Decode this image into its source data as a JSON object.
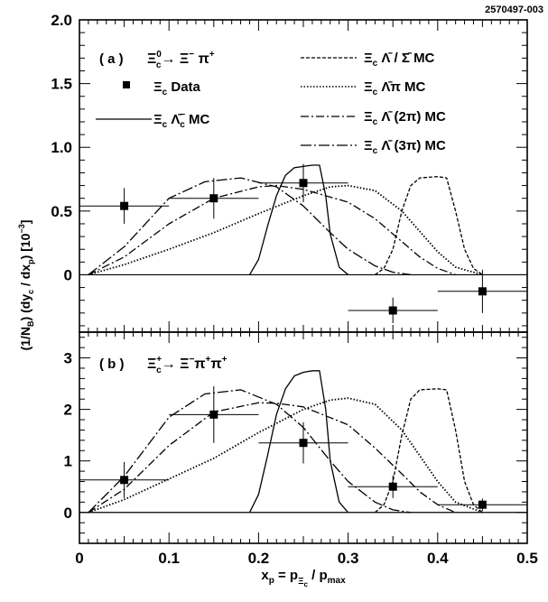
{
  "figure_id": "2570497-003",
  "y_axis_label": "(1/N_B) (dy_c / dx_p) [10^-3]",
  "x_axis_label": "x_p = p_Ξc / p_max",
  "chart_data": [
    {
      "type": "scatter",
      "panel": "a",
      "panel_label": "( a )",
      "decay": "Ξc0 → Ξ− π+",
      "xlim": [
        0,
        0.5
      ],
      "ylim": [
        -0.45,
        2.0
      ],
      "x_ticks": [
        0,
        0.1,
        0.2,
        0.3,
        0.4,
        0.5
      ],
      "y_ticks": [
        0,
        0.5,
        1.0,
        1.5,
        2.0
      ],
      "y_tick_labels": [
        "0",
        "0.5",
        "1.0",
        "1.5",
        "2.0"
      ],
      "data": {
        "name": "Ξc Data",
        "x": [
          0.05,
          0.15,
          0.25,
          0.35,
          0.45
        ],
        "y": [
          0.54,
          0.6,
          0.72,
          -0.28,
          -0.13
        ],
        "x_err": [
          0.05,
          0.05,
          0.05,
          0.05,
          0.05
        ],
        "y_err": [
          0.14,
          0.16,
          0.15,
          0.1,
          0.17
        ]
      },
      "mc_series": [
        {
          "name": "Ξc Λ̄c⁻ MC",
          "style": "solid",
          "x": [
            0.19,
            0.2,
            0.21,
            0.22,
            0.23,
            0.24,
            0.25,
            0.26,
            0.268,
            0.275,
            0.28,
            0.29,
            0.3
          ],
          "y": [
            0,
            0.12,
            0.38,
            0.62,
            0.78,
            0.84,
            0.85,
            0.86,
            0.86,
            0.62,
            0.32,
            0.06,
            0
          ]
        },
        {
          "name": "Ξc Λ̄ / Σ̄ MC",
          "style": "dashed",
          "x": [
            0.33,
            0.34,
            0.35,
            0.36,
            0.37,
            0.38,
            0.4,
            0.41,
            0.42,
            0.43,
            0.44,
            0.45
          ],
          "y": [
            0,
            0.05,
            0.2,
            0.5,
            0.7,
            0.76,
            0.77,
            0.76,
            0.5,
            0.2,
            0.05,
            0
          ]
        },
        {
          "name": "Ξc Λ̄ π MC",
          "style": "dotted",
          "x": [
            0.01,
            0.05,
            0.1,
            0.15,
            0.2,
            0.25,
            0.28,
            0.3,
            0.33,
            0.36,
            0.38,
            0.4,
            0.42,
            0.45
          ],
          "y": [
            0,
            0.08,
            0.2,
            0.33,
            0.48,
            0.62,
            0.69,
            0.7,
            0.66,
            0.5,
            0.34,
            0.18,
            0.06,
            0
          ]
        },
        {
          "name": "Ξc Λ̄ (2π) MC",
          "style": "dashdot",
          "x": [
            0.01,
            0.05,
            0.1,
            0.15,
            0.2,
            0.22,
            0.25,
            0.3,
            0.33,
            0.36,
            0.38,
            0.4,
            0.42
          ],
          "y": [
            0,
            0.14,
            0.4,
            0.6,
            0.69,
            0.7,
            0.67,
            0.57,
            0.44,
            0.26,
            0.14,
            0.05,
            0
          ]
        },
        {
          "name": "Ξc Λ̄ (3π) MC",
          "style": "dashdotdot",
          "x": [
            0.01,
            0.05,
            0.1,
            0.14,
            0.18,
            0.22,
            0.25,
            0.28,
            0.3,
            0.33,
            0.35,
            0.37
          ],
          "y": [
            0,
            0.22,
            0.6,
            0.73,
            0.76,
            0.69,
            0.54,
            0.33,
            0.2,
            0.07,
            0.02,
            0
          ]
        }
      ]
    },
    {
      "type": "scatter",
      "panel": "b",
      "panel_label": "( b )",
      "decay": "Ξc+ → Ξ− π+ π+",
      "xlim": [
        0,
        0.5
      ],
      "ylim": [
        -0.6,
        3.5
      ],
      "x_ticks": [
        0,
        0.1,
        0.2,
        0.3,
        0.4,
        0.5
      ],
      "x_tick_labels": [
        "0",
        "0.1",
        "0.2",
        "0.3",
        "0.4",
        "0.5"
      ],
      "y_ticks": [
        0,
        1,
        2,
        3
      ],
      "y_tick_labels": [
        "0",
        "1",
        "2",
        "3"
      ],
      "data": {
        "name": "Ξc Data",
        "x": [
          0.05,
          0.15,
          0.25,
          0.35,
          0.45
        ],
        "y": [
          0.63,
          1.9,
          1.35,
          0.5,
          0.15
        ],
        "x_err": [
          0.05,
          0.05,
          0.05,
          0.05,
          0.05
        ],
        "y_err": [
          0.35,
          0.55,
          0.4,
          0.22,
          0.12
        ]
      },
      "mc_series": [
        {
          "name": "Ξc Λ̄c⁻ MC",
          "style": "solid",
          "x": [
            0.19,
            0.2,
            0.21,
            0.22,
            0.23,
            0.24,
            0.25,
            0.26,
            0.268,
            0.275,
            0.28,
            0.29,
            0.3
          ],
          "y": [
            0,
            0.35,
            1.1,
            1.9,
            2.4,
            2.65,
            2.72,
            2.75,
            2.75,
            2.0,
            1.0,
            0.2,
            0
          ]
        },
        {
          "name": "Ξc Λ̄ / Σ̄ MC",
          "style": "dashed",
          "x": [
            0.33,
            0.34,
            0.35,
            0.36,
            0.37,
            0.38,
            0.4,
            0.41,
            0.42,
            0.43,
            0.44,
            0.45
          ],
          "y": [
            0,
            0.15,
            0.6,
            1.5,
            2.2,
            2.38,
            2.4,
            2.38,
            1.6,
            0.6,
            0.15,
            0
          ]
        },
        {
          "name": "Ξc Λ̄ π MC",
          "style": "dotted",
          "x": [
            0.01,
            0.05,
            0.1,
            0.15,
            0.2,
            0.25,
            0.28,
            0.3,
            0.33,
            0.36,
            0.38,
            0.4,
            0.42,
            0.45
          ],
          "y": [
            0,
            0.25,
            0.65,
            1.05,
            1.55,
            2.0,
            2.18,
            2.22,
            2.1,
            1.6,
            1.1,
            0.6,
            0.2,
            0
          ]
        },
        {
          "name": "Ξc Λ̄ (2π) MC",
          "style": "dashdot",
          "x": [
            0.01,
            0.05,
            0.1,
            0.15,
            0.2,
            0.22,
            0.25,
            0.3,
            0.33,
            0.36,
            0.38,
            0.4,
            0.42
          ],
          "y": [
            0,
            0.45,
            1.3,
            1.95,
            2.13,
            2.12,
            2.05,
            1.7,
            1.25,
            0.75,
            0.4,
            0.15,
            0
          ]
        },
        {
          "name": "Ξc Λ̄ (3π) MC",
          "style": "dashdotdot",
          "x": [
            0.01,
            0.05,
            0.1,
            0.14,
            0.18,
            0.22,
            0.25,
            0.28,
            0.3,
            0.33,
            0.35,
            0.37
          ],
          "y": [
            0,
            0.7,
            1.85,
            2.3,
            2.38,
            2.1,
            1.65,
            1.0,
            0.6,
            0.2,
            0.05,
            0
          ]
        }
      ]
    }
  ]
}
